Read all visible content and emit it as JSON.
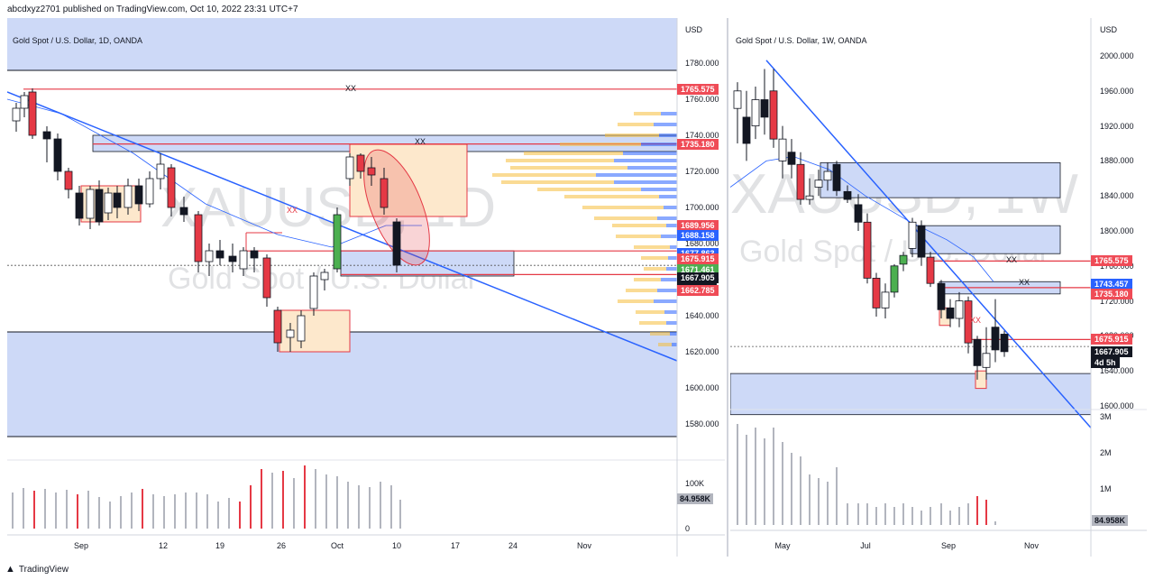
{
  "header": "abcdxyz2701 published on TradingView.com, Oct 10, 2022 23:31 UTC+7",
  "footer_brand": "TradingView",
  "colors": {
    "zone_blue": "#cdd9f7",
    "zone_orange": "#fde8cc",
    "red": "#e53945",
    "green": "#4caf50",
    "bull": "#ffffff",
    "bear": "#e53945",
    "label_red": "#ef4b56",
    "label_blue": "#2962ff",
    "label_black": "#131722"
  },
  "left_chart": {
    "title": "Gold Spot / U.S. Dollar, 1D, OANDA",
    "currency": "USD",
    "watermark_symbol": "XAUUSD, 1D",
    "watermark_name": "Gold Spot / U.S. Dollar",
    "xx_top": "XX",
    "xx_mid": "XX",
    "xx_low": "XX",
    "y_ticks": [
      "1780.000",
      "1760.000",
      "1740.000",
      "1720.000",
      "1700.000",
      "1680.000",
      "1660.000",
      "1640.000",
      "1620.000",
      "1600.000",
      "1580.000"
    ],
    "x_ticks": [
      "Sep",
      "12",
      "19",
      "26",
      "Oct",
      "10",
      "17",
      "24",
      "Nov"
    ],
    "price_labels": [
      {
        "text": "1765.575",
        "kind": "red"
      },
      {
        "text": "1735.180",
        "kind": "red"
      },
      {
        "text": "1689.956",
        "kind": "red"
      },
      {
        "text": "1688.158",
        "kind": "blue"
      },
      {
        "text": "1677.863",
        "kind": "blue"
      },
      {
        "text": "1675.915",
        "kind": "red"
      },
      {
        "text": "1671.461",
        "kind": "green"
      },
      {
        "text": "1667.905",
        "kind": "black"
      },
      {
        "text": "04:28:49",
        "kind": "black"
      },
      {
        "text": "1662.785",
        "kind": "red"
      }
    ],
    "volume_label": "84.958K",
    "volume_ticks": [
      "100K",
      "0"
    ]
  },
  "right_chart": {
    "title": "Gold Spot / U.S. Dollar, 1W, OANDA",
    "currency": "USD",
    "watermark_symbol": "XAUUSD, 1W",
    "watermark_name": "Gold Spot / U.S. Dollar",
    "xx_a": "XX",
    "xx_b": "XX",
    "xx_c": "XX",
    "y_ticks": [
      "2000.000",
      "1960.000",
      "1920.000",
      "1880.000",
      "1840.000",
      "1800.000",
      "1760.000",
      "1720.000",
      "1680.000",
      "1640.000",
      "1600.000"
    ],
    "x_ticks": [
      "May",
      "Jul",
      "Sep",
      "Nov"
    ],
    "price_labels": [
      {
        "text": "1765.575",
        "kind": "red"
      },
      {
        "text": "1743.457",
        "kind": "blue"
      },
      {
        "text": "1735.180",
        "kind": "red"
      },
      {
        "text": "1675.915",
        "kind": "red"
      },
      {
        "text": "1667.905",
        "kind": "black"
      },
      {
        "text": "4d 5h",
        "kind": "black"
      }
    ],
    "volume_label": "84.958K",
    "volume_ticks": [
      "3M",
      "2M",
      "1M"
    ]
  }
}
